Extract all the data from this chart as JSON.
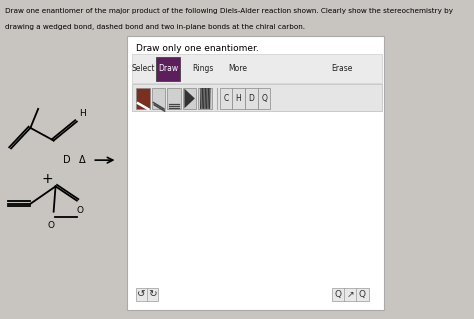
{
  "title_line1": "Draw one enantiomer of the major product of the following Diels-Alder reaction shown. Clearly show the stereochemistry by",
  "title_line2": "drawing a wedged bond, dashed bond and two in-plane bonds at the chiral carbon.",
  "panel_label": "Draw only one enantiomer.",
  "toolbar_items": [
    "Select",
    "Draw",
    "Rings",
    "More",
    "Erase"
  ],
  "bg_color": "#c8c4c0",
  "atom_buttons": [
    "C",
    "H",
    "D",
    "Q"
  ]
}
